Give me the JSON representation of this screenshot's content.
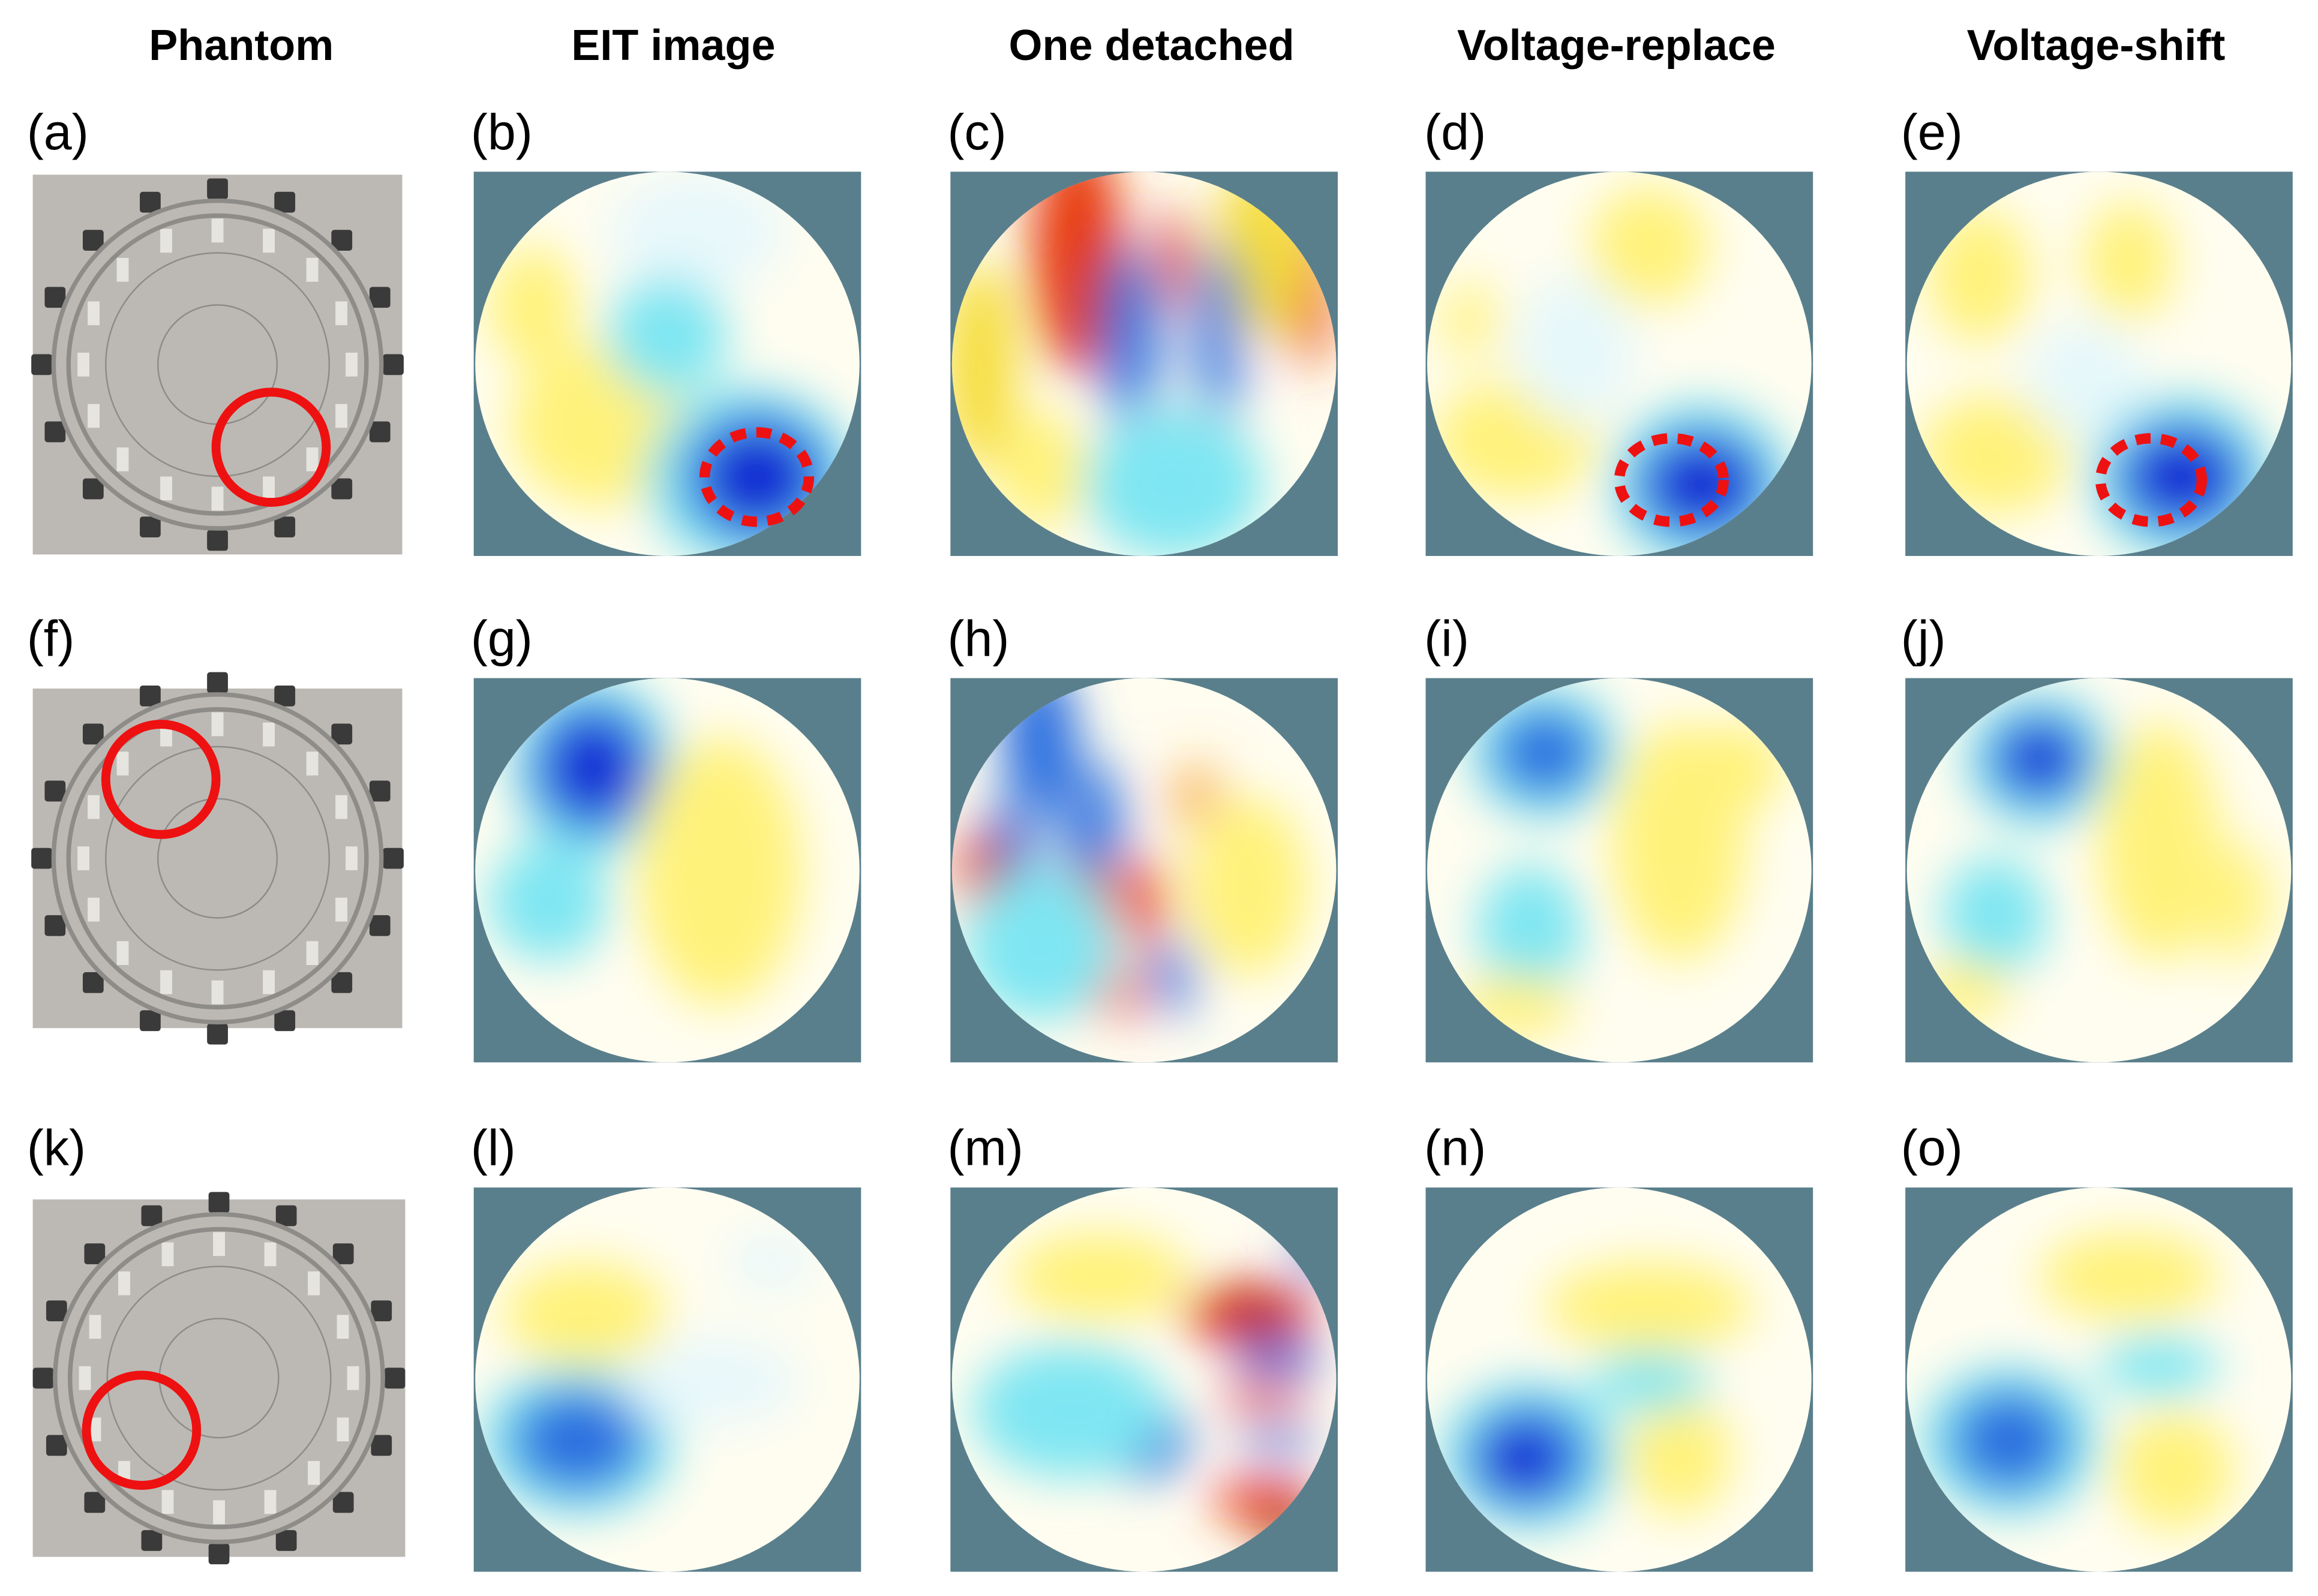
{
  "column_headers": [
    "Phantom",
    "EIT image",
    "One detached",
    "Voltage-replace",
    "Voltage-shift"
  ],
  "panel_labels": [
    [
      "(a)",
      "(b)",
      "(c)",
      "(d)",
      "(e)"
    ],
    [
      "(f)",
      "(g)",
      "(h)",
      "(i)",
      "(j)"
    ],
    [
      "(k)",
      "(l)",
      "(m)",
      "(n)",
      "(o)"
    ]
  ]
}
